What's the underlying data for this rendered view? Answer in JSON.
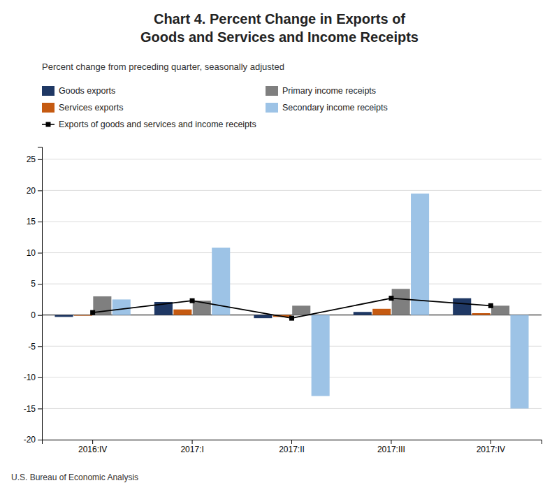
{
  "chart_data": {
    "type": "bar",
    "title": "Chart 4. Percent Change in Exports of\nGoods and Services and Income Receipts",
    "subtitle": "Percent change from preceding quarter, seasonally adjusted",
    "annotations": [
      "U.S. Bureau of Economic Analysis"
    ],
    "categories": [
      "2016:IV",
      "2017:I",
      "2017:II",
      "2017:III",
      "2017:IV"
    ],
    "series": [
      {
        "name": "Goods exports",
        "type": "bar",
        "color": "#1f3864",
        "values": [
          -0.3,
          2.1,
          -0.5,
          0.5,
          2.7
        ]
      },
      {
        "name": "Services exports",
        "type": "bar",
        "color": "#c55a11",
        "values": [
          -0.1,
          0.9,
          -0.3,
          1.0,
          0.3
        ]
      },
      {
        "name": "Primary income receipts",
        "type": "bar",
        "color": "#7f7f7f",
        "values": [
          3.0,
          2.3,
          1.5,
          4.2,
          1.5
        ]
      },
      {
        "name": "Secondary income receipts",
        "type": "bar",
        "color": "#9dc3e6",
        "values": [
          2.5,
          10.8,
          -13.0,
          19.5,
          -15.0
        ]
      },
      {
        "name": "Exports of goods and services and income receipts",
        "type": "line",
        "color": "#000000",
        "marker": "square",
        "values": [
          0.4,
          2.3,
          -0.5,
          2.7,
          1.5
        ]
      }
    ],
    "ylim": [
      -20,
      27
    ],
    "yticks": [
      -20,
      -15,
      -10,
      -5,
      0,
      5,
      10,
      15,
      20,
      25
    ],
    "grid": true
  }
}
